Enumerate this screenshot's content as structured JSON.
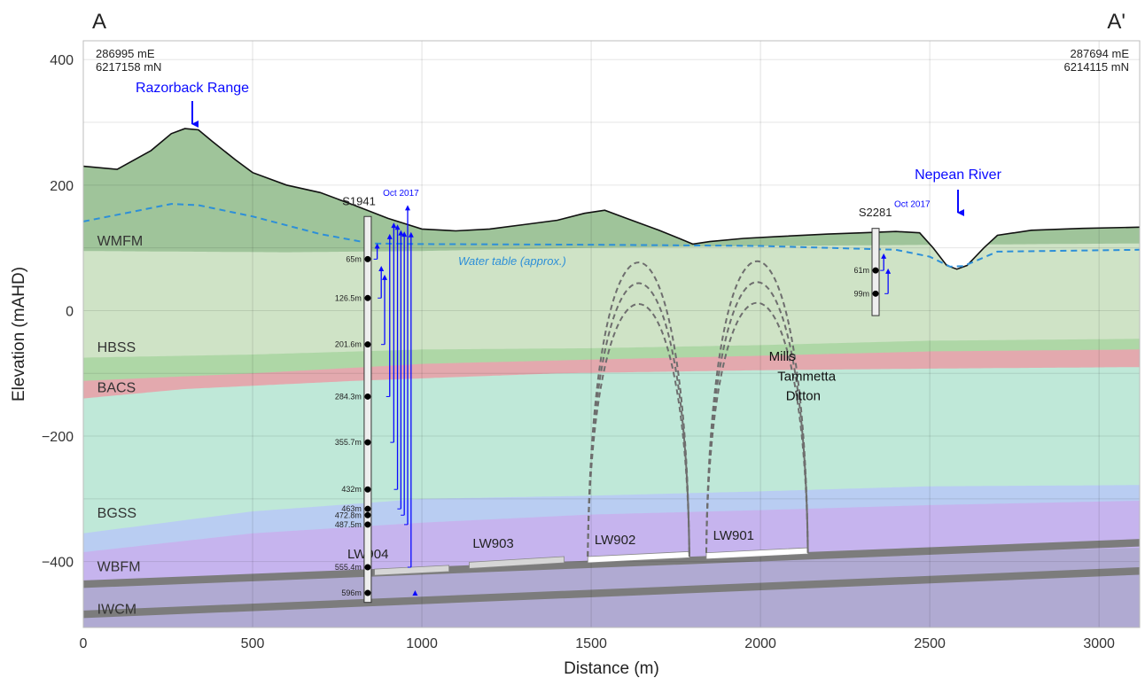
{
  "section_ends": {
    "left": "A",
    "right": "A'"
  },
  "coords": {
    "left": [
      "286995 mE",
      "6217158 mN"
    ],
    "right": [
      "287694 mE",
      "6214115 mN"
    ]
  },
  "features": {
    "range": "Razorback Range",
    "river": "Nepean River"
  },
  "water_table_label": "Water table (approx.)",
  "colors": {
    "WMFM": "#cfe3c6",
    "topsoil": "#9fc49a",
    "HBSS": "#aed7a6",
    "BACS": "#e3a9ae",
    "BGSS_upper": "#bfe8d8",
    "BGSS_lower": "#b9cdf2",
    "WBFM": "#c6b4ee",
    "IWCM": "#b0aad2",
    "coal_seam": "#7c7c7c",
    "annotation_blue": "#0a0aff",
    "water_table": "#2d8fd8"
  },
  "chart_data": {
    "type": "cross-section",
    "xlabel": "Distance (m)",
    "ylabel": "Elevation (mAHD)",
    "xlim": [
      0,
      3120
    ],
    "ylim": [
      -505,
      430
    ],
    "x_ticks": [
      0,
      500,
      1000,
      1500,
      2000,
      2500,
      3000
    ],
    "y_ticks": [
      400,
      200,
      0,
      -200,
      -400
    ],
    "grid": true,
    "surface": [
      [
        0,
        230
      ],
      [
        100,
        225
      ],
      [
        200,
        255
      ],
      [
        260,
        282
      ],
      [
        300,
        290
      ],
      [
        340,
        288
      ],
      [
        380,
        270
      ],
      [
        450,
        240
      ],
      [
        500,
        220
      ],
      [
        600,
        200
      ],
      [
        700,
        188
      ],
      [
        800,
        168
      ],
      [
        900,
        147
      ],
      [
        1000,
        130
      ],
      [
        1100,
        127
      ],
      [
        1200,
        130
      ],
      [
        1300,
        137
      ],
      [
        1400,
        144
      ],
      [
        1480,
        155
      ],
      [
        1540,
        160
      ],
      [
        1600,
        148
      ],
      [
        1700,
        128
      ],
      [
        1760,
        115
      ],
      [
        1800,
        106
      ],
      [
        1850,
        110
      ],
      [
        1950,
        115
      ],
      [
        2050,
        118
      ],
      [
        2200,
        122
      ],
      [
        2300,
        124
      ],
      [
        2400,
        126
      ],
      [
        2470,
        124
      ],
      [
        2510,
        100
      ],
      [
        2550,
        72
      ],
      [
        2580,
        66
      ],
      [
        2610,
        72
      ],
      [
        2660,
        100
      ],
      [
        2700,
        120
      ],
      [
        2800,
        128
      ],
      [
        2950,
        131
      ],
      [
        3120,
        133
      ]
    ],
    "water_table": [
      [
        0,
        142
      ],
      [
        150,
        158
      ],
      [
        260,
        170
      ],
      [
        340,
        168
      ],
      [
        500,
        150
      ],
      [
        700,
        122
      ],
      [
        850,
        107
      ],
      [
        1000,
        106
      ],
      [
        1500,
        105
      ],
      [
        2000,
        103
      ],
      [
        2400,
        97
      ],
      [
        2500,
        86
      ],
      [
        2560,
        70
      ],
      [
        2600,
        71
      ],
      [
        2700,
        94
      ],
      [
        3120,
        97
      ]
    ],
    "unit_tops": [
      {
        "unit": "topsoil",
        "points": [
          [
            0,
            230
          ]
        ]
      },
      {
        "unit": "WMFM",
        "points": [
          [
            0,
            95
          ],
          [
            600,
            93
          ],
          [
            1000,
            95
          ],
          [
            1500,
            100
          ],
          [
            2000,
            103
          ],
          [
            3120,
            107
          ]
        ]
      },
      {
        "unit": "HBSS",
        "points": [
          [
            0,
            -75
          ],
          [
            500,
            -70
          ],
          [
            1000,
            -62
          ],
          [
            1500,
            -60
          ],
          [
            2000,
            -55
          ],
          [
            2500,
            -48
          ],
          [
            3120,
            -45
          ]
        ]
      },
      {
        "unit": "BACS",
        "points": [
          [
            0,
            -112
          ],
          [
            500,
            -100
          ],
          [
            1000,
            -85
          ],
          [
            1500,
            -78
          ],
          [
            2000,
            -72
          ],
          [
            2500,
            -65
          ],
          [
            3120,
            -62
          ]
        ]
      },
      {
        "unit": "BGSS_upper",
        "points": [
          [
            0,
            -140
          ],
          [
            300,
            -125
          ],
          [
            800,
            -112
          ],
          [
            1400,
            -100
          ],
          [
            2000,
            -95
          ],
          [
            2600,
            -92
          ],
          [
            3120,
            -90
          ]
        ]
      },
      {
        "unit": "BGSS_lower",
        "points": [
          [
            0,
            -355
          ],
          [
            500,
            -320
          ],
          [
            1000,
            -300
          ],
          [
            1500,
            -295
          ],
          [
            2000,
            -288
          ],
          [
            2500,
            -280
          ],
          [
            3120,
            -278
          ]
        ]
      },
      {
        "unit": "WBFM",
        "points": [
          [
            0,
            -385
          ],
          [
            500,
            -355
          ],
          [
            1000,
            -338
          ],
          [
            1500,
            -325
          ],
          [
            2000,
            -318
          ],
          [
            2500,
            -310
          ],
          [
            3120,
            -303
          ]
        ]
      },
      {
        "unit": "IWCM",
        "points": [
          [
            0,
            -440
          ],
          [
            500,
            -425
          ],
          [
            1000,
            -410
          ],
          [
            1500,
            -402
          ],
          [
            2000,
            -395
          ],
          [
            2500,
            -386
          ],
          [
            3120,
            -378
          ]
        ]
      }
    ],
    "seams": [
      {
        "name": "upper seam",
        "x": [
          0,
          3120
        ],
        "y_top": [
          -430,
          -364
        ],
        "y_bot": [
          -442,
          -376
        ]
      },
      {
        "name": "lower seam",
        "x": [
          0,
          3120
        ],
        "y_top": [
          -478,
          -409
        ],
        "y_bot": [
          -490,
          -421
        ]
      }
    ],
    "unit_labels": [
      {
        "text": "WMFM",
        "x": 20,
        "y": 104
      },
      {
        "text": "HBSS",
        "x": 20,
        "y": -66
      },
      {
        "text": "BACS",
        "x": 20,
        "y": -130
      },
      {
        "text": "BGSS",
        "x": 20,
        "y": -330
      },
      {
        "text": "WBFM",
        "x": 20,
        "y": -415
      },
      {
        "text": "IWCM",
        "x": 20,
        "y": -483
      }
    ],
    "longwalls": [
      {
        "name": "LW904",
        "x0": 860,
        "x1": 1080,
        "y0": -412,
        "y1": -406,
        "fill": "#d6d6d6",
        "label_x": 780,
        "label_y": -395
      },
      {
        "name": "LW903",
        "x0": 1140,
        "x1": 1420,
        "y0": -401,
        "y1": -392,
        "fill": "#d6d6d6",
        "label_x": 1150,
        "label_y": -378
      },
      {
        "name": "LW902",
        "x0": 1490,
        "x1": 1790,
        "y0": -392,
        "y1": -384,
        "fill": "#ffffff",
        "label_x": 1510,
        "label_y": -372
      },
      {
        "name": "LW901",
        "x0": 1840,
        "x1": 2140,
        "y0": -386,
        "y1": -378,
        "fill": "#ffffff",
        "label_x": 1860,
        "label_y": -365
      }
    ],
    "fracture_arches": [
      {
        "x0": 1490,
        "x1": 1790,
        "peaks": [
          -83,
          -107,
          -131
        ]
      },
      {
        "x0": 1840,
        "x1": 2140,
        "peaks": [
          -80,
          -104,
          -128
        ]
      }
    ],
    "fracture_labels": [
      {
        "text": "Mills",
        "x": 2025,
        "y": -80
      },
      {
        "text": "Tammetta",
        "x": 2050,
        "y": -112
      },
      {
        "text": "Ditton",
        "x": 2075,
        "y": -143
      }
    ],
    "bores": [
      {
        "name": "S1941",
        "date": "Oct 2017",
        "x": 840,
        "top": 150,
        "bottom": -465,
        "name_xy": [
          765,
          168
        ],
        "date_xy": [
          885,
          183
        ],
        "depths": [
          {
            "label": "65m",
            "y": 82
          },
          {
            "label": "126.5m",
            "y": 20
          },
          {
            "label": "201.6m",
            "y": -54
          },
          {
            "label": "284.3m",
            "y": -137
          },
          {
            "label": "355.7m",
            "y": -210
          },
          {
            "label": "432m",
            "y": -285
          },
          {
            "label": "463m",
            "y": -316
          },
          {
            "label": "472.8m",
            "y": -326
          },
          {
            "label": "487.5m",
            "y": -341
          },
          {
            "label": "555.4m",
            "y": -409
          },
          {
            "label": "596m",
            "y": -450
          }
        ],
        "heads": [
          {
            "x": 868,
            "from": 103,
            "to": 82
          },
          {
            "x": 880,
            "from": 67,
            "to": 20
          },
          {
            "x": 890,
            "from": 53,
            "to": -54
          },
          {
            "x": 905,
            "from": 118,
            "to": -137
          },
          {
            "x": 917,
            "from": 136,
            "to": -210
          },
          {
            "x": 928,
            "from": 133,
            "to": -285
          },
          {
            "x": 938,
            "from": 124,
            "to": -316
          },
          {
            "x": 948,
            "from": 122,
            "to": -326
          },
          {
            "x": 958,
            "from": 164,
            "to": -341
          },
          {
            "x": 968,
            "from": 121,
            "to": -409
          },
          {
            "x": 980,
            "from": -450,
            "to": -450
          }
        ]
      },
      {
        "name": "S2281",
        "date": "Oct 2017",
        "x": 2340,
        "top": 131,
        "bottom": -8,
        "name_xy": [
          2290,
          150
        ],
        "date_xy": [
          2395,
          165
        ],
        "depths": [
          {
            "label": "61m",
            "y": 64
          },
          {
            "label": "99m",
            "y": 27
          }
        ],
        "heads": [
          {
            "x": 2364,
            "from": 87,
            "to": 64
          },
          {
            "x": 2377,
            "from": 63,
            "to": 27
          }
        ]
      }
    ]
  }
}
